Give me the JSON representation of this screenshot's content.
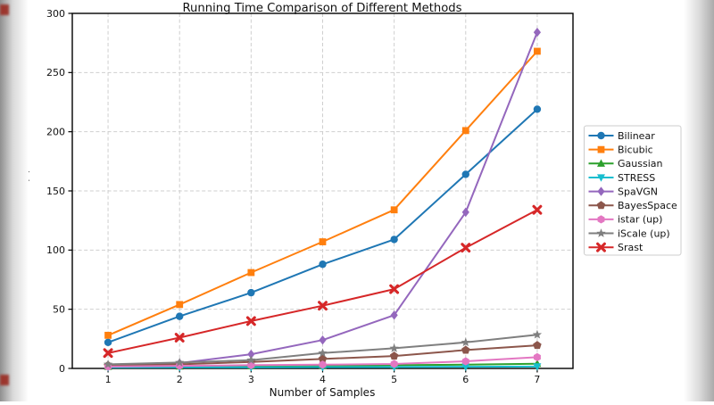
{
  "window": {
    "kind": "matplotlib-figure-screenshot",
    "background": "#ffffff",
    "edge_vignette_color": "#9a9a9a",
    "edge_artifact_color": "#9b2b22"
  },
  "chart_data": {
    "type": "line",
    "title": "Running Time Comparison of Different Methods",
    "xlabel": "Number of Samples",
    "ylabel": "Time (s)",
    "x": [
      1,
      2,
      3,
      4,
      5,
      6,
      7
    ],
    "xticks": [
      "1",
      "2",
      "3",
      "4",
      "5",
      "6",
      "7"
    ],
    "yticks": [
      0,
      50,
      100,
      150,
      200,
      250,
      300
    ],
    "xlim": [
      0.5,
      7.5
    ],
    "ylim": [
      0,
      300
    ],
    "grid": true,
    "grid_style": "dashed",
    "grid_color": "#cfcfcf",
    "spine_color": "#000000",
    "legend_position": "outside-right",
    "legend_border_color": "#cccccc",
    "series": [
      {
        "name": "Bilinear",
        "color": "#1f77b4",
        "marker": "circle",
        "values": [
          22,
          44,
          64,
          88,
          109,
          164,
          219
        ]
      },
      {
        "name": "Bicubic",
        "color": "#ff7f0e",
        "marker": "square",
        "values": [
          28,
          54,
          81,
          107,
          134,
          201,
          268
        ]
      },
      {
        "name": "Gaussian",
        "color": "#2ca02c",
        "marker": "triangle-up",
        "values": [
          1.5,
          1.8,
          2.1,
          2.4,
          2.7,
          3.2,
          4
        ]
      },
      {
        "name": "STRESS",
        "color": "#17becf",
        "marker": "triangle-down",
        "values": [
          0.8,
          0.9,
          1.0,
          1.1,
          1.2,
          1.4,
          1.6
        ]
      },
      {
        "name": "SpaVGN",
        "color": "#9467bd",
        "marker": "diamond",
        "values": [
          2,
          4.5,
          12,
          24,
          45,
          132,
          284
        ]
      },
      {
        "name": "BayesSpace",
        "color": "#8c564b",
        "marker": "pentagon",
        "values": [
          2.5,
          3.5,
          5.5,
          8,
          10.5,
          15.5,
          19.5
        ]
      },
      {
        "name": "istar (up)",
        "color": "#e377c2",
        "marker": "hexagon",
        "values": [
          1.5,
          2.2,
          2.8,
          3.2,
          3.8,
          6,
          9.5
        ]
      },
      {
        "name": "iScale (up)",
        "color": "#7f7f7f",
        "marker": "star",
        "values": [
          3.5,
          5,
          7,
          13,
          17,
          22,
          28.5
        ]
      },
      {
        "name": "Srast",
        "color": "#d62728",
        "marker": "x",
        "values": [
          13,
          26,
          40,
          53,
          67,
          102,
          134
        ]
      }
    ]
  }
}
